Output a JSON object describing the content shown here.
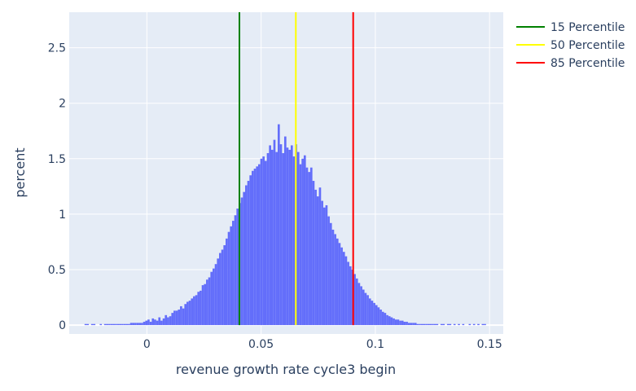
{
  "chart_data": {
    "type": "bar",
    "xlabel": "revenue growth rate cycle3 begin",
    "ylabel": "percent",
    "xlim": [
      -0.034,
      0.156
    ],
    "ylim": [
      -0.08,
      2.82
    ],
    "grid": true,
    "legend_position": "top-right",
    "x_ticks": [
      {
        "value": 0,
        "label": "0"
      },
      {
        "value": 0.05,
        "label": "0.05"
      },
      {
        "value": 0.1,
        "label": "0.1"
      },
      {
        "value": 0.15,
        "label": "0.15"
      }
    ],
    "y_ticks": [
      {
        "value": 0,
        "label": "0"
      },
      {
        "value": 0.5,
        "label": "0.5"
      },
      {
        "value": 1,
        "label": "1"
      },
      {
        "value": 1.5,
        "label": "1.5"
      },
      {
        "value": 2,
        "label": "2"
      },
      {
        "value": 2.5,
        "label": "2.5"
      }
    ],
    "histogram": {
      "color": "#636efa",
      "bin_start": -0.0273,
      "bin_width": 0.00095,
      "values": [
        0.01,
        0.01,
        0.0,
        0.01,
        0.01,
        0.0,
        0.0,
        0.01,
        0.0,
        0.01,
        0.01,
        0.01,
        0.01,
        0.01,
        0.01,
        0.01,
        0.01,
        0.01,
        0.01,
        0.01,
        0.01,
        0.02,
        0.02,
        0.02,
        0.02,
        0.02,
        0.02,
        0.03,
        0.04,
        0.05,
        0.03,
        0.06,
        0.05,
        0.04,
        0.07,
        0.04,
        0.06,
        0.09,
        0.07,
        0.08,
        0.11,
        0.13,
        0.13,
        0.14,
        0.17,
        0.15,
        0.19,
        0.21,
        0.22,
        0.24,
        0.26,
        0.27,
        0.3,
        0.31,
        0.36,
        0.37,
        0.41,
        0.43,
        0.48,
        0.51,
        0.55,
        0.6,
        0.65,
        0.68,
        0.72,
        0.78,
        0.84,
        0.89,
        0.94,
        0.99,
        1.05,
        1.1,
        1.15,
        1.2,
        1.26,
        1.3,
        1.35,
        1.39,
        1.41,
        1.43,
        1.45,
        1.5,
        1.52,
        1.48,
        1.55,
        1.62,
        1.58,
        1.67,
        1.56,
        1.81,
        1.63,
        1.55,
        1.7,
        1.6,
        1.58,
        1.62,
        1.52,
        1.63,
        1.56,
        1.45,
        1.5,
        1.53,
        1.42,
        1.38,
        1.42,
        1.3,
        1.22,
        1.16,
        1.24,
        1.12,
        1.06,
        1.08,
        0.98,
        0.92,
        0.86,
        0.82,
        0.78,
        0.74,
        0.7,
        0.66,
        0.62,
        0.57,
        0.53,
        0.5,
        0.46,
        0.42,
        0.38,
        0.35,
        0.32,
        0.29,
        0.27,
        0.24,
        0.22,
        0.2,
        0.18,
        0.16,
        0.14,
        0.12,
        0.11,
        0.09,
        0.08,
        0.07,
        0.06,
        0.05,
        0.05,
        0.04,
        0.04,
        0.03,
        0.03,
        0.02,
        0.02,
        0.02,
        0.02,
        0.01,
        0.01,
        0.01,
        0.01,
        0.01,
        0.01,
        0.01,
        0.01,
        0.01,
        0.01,
        0.0,
        0.01,
        0.01,
        0.0,
        0.01,
        0.01,
        0.0,
        0.01,
        0.0,
        0.01,
        0.0,
        0.01,
        0.0,
        0.0,
        0.01,
        0.0,
        0.01,
        0.0,
        0.01,
        0.0,
        0.01,
        0.01,
        0.0
      ]
    },
    "series": [
      {
        "name": "15 Percentile",
        "x": 0.0405,
        "y0": 0,
        "y1": 2.82,
        "color": "#008000"
      },
      {
        "name": "50 Percentile",
        "x": 0.0652,
        "y0": 0,
        "y1": 2.82,
        "color": "#ffff00"
      },
      {
        "name": "85 Percentile",
        "x": 0.0903,
        "y0": 0,
        "y1": 2.82,
        "color": "#ff0000"
      }
    ]
  }
}
